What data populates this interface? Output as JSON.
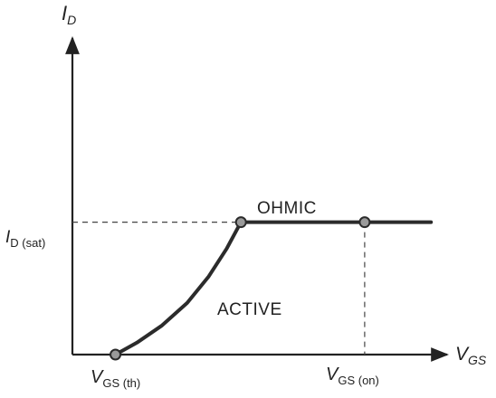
{
  "chart_data": {
    "type": "line",
    "title": "",
    "xlabel": "V",
    "xlabel_sub": "GS",
    "ylabel": "I",
    "ylabel_sub": "D",
    "x_ticks": [
      {
        "main": "V",
        "sub": "GS (th)"
      },
      {
        "main": "V",
        "sub": "GS (on)"
      }
    ],
    "y_ticks": [
      {
        "main": "I",
        "sub": "D (sat)"
      }
    ],
    "annotations": [
      "OHMIC",
      "ACTIVE"
    ],
    "grid": false,
    "x": [
      0.12,
      0.18,
      0.25,
      0.32,
      0.38,
      0.43,
      0.47,
      0.6,
      0.75,
      0.9,
      1.0
    ],
    "y": [
      0.0,
      0.09,
      0.22,
      0.39,
      0.59,
      0.8,
      1.0,
      1.0,
      1.0,
      1.0,
      1.0
    ],
    "marked_points": [
      {
        "x": 0.12,
        "y": 0.0
      },
      {
        "x": 0.47,
        "y": 1.0
      },
      {
        "x": 0.815,
        "y": 1.0
      }
    ],
    "xlim": [
      0,
      1.05
    ],
    "ylim": [
      0,
      2.2
    ],
    "colors": {
      "curve": "#2b2b2b",
      "axis": "#222222",
      "dashed": "#444444"
    }
  }
}
